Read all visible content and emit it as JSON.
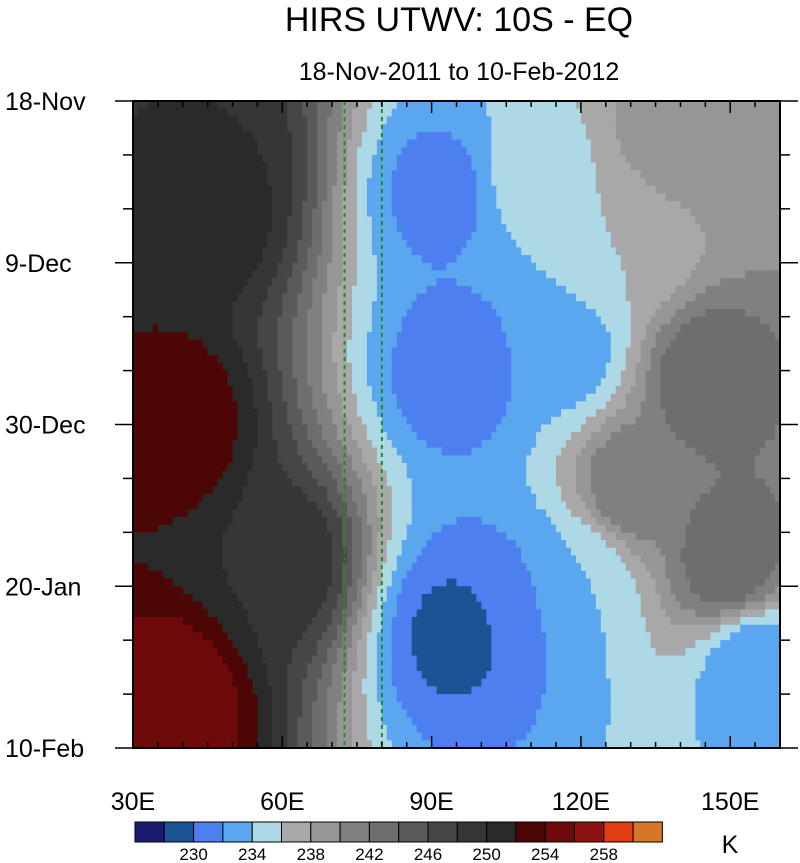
{
  "chart_data": {
    "type": "heatmap",
    "title": "HIRS UTWV: 10S - EQ",
    "subtitle": "18-Nov-2011 to 10-Feb-2012",
    "x_axis": {
      "range": [
        30,
        160
      ],
      "ticks": [
        {
          "value": 30,
          "label": "30E"
        },
        {
          "value": 60,
          "label": "60E"
        },
        {
          "value": 90,
          "label": "90E"
        },
        {
          "value": 120,
          "label": "120E"
        },
        {
          "value": 150,
          "label": "150E"
        }
      ]
    },
    "y_axis": {
      "range": [
        "18-Nov-2011",
        "10-Feb-2012"
      ],
      "ticks": [
        {
          "day": 0,
          "label": "18-Nov"
        },
        {
          "day": 21,
          "label": "9-Dec"
        },
        {
          "day": 42,
          "label": "30-Dec"
        },
        {
          "day": 63,
          "label": "20-Jan"
        },
        {
          "day": 84,
          "label": "10-Feb"
        }
      ]
    },
    "reference_lines_longitude": [
      72.5,
      80
    ],
    "reference_line_color": "#1f8a1f",
    "colorbar": {
      "unit": "K",
      "levels": [
        228,
        230,
        232,
        234,
        236,
        238,
        240,
        242,
        244,
        246,
        248,
        250,
        252,
        254,
        256,
        258,
        260
      ],
      "labels": [
        "230",
        "234",
        "238",
        "242",
        "246",
        "250",
        "254",
        "258"
      ],
      "colors": [
        "#1a1a6e",
        "#1c5394",
        "#4e7ff0",
        "#5aa6ef",
        "#add8e6",
        "#a8a8a8",
        "#969696",
        "#808080",
        "#6e6e6e",
        "#5a5a5a",
        "#464646",
        "#363636",
        "#2a2a2a",
        "#4d0606",
        "#6e0a0a",
        "#8f1212",
        "#e33b12",
        "#d67627"
      ]
    },
    "field_features": [
      {
        "lon": 45,
        "day": 6,
        "value": 250
      },
      {
        "lon": 45,
        "day": 14,
        "value": 252
      },
      {
        "lon": 38,
        "day": 42,
        "value": 254
      },
      {
        "lon": 38,
        "day": 78,
        "value": 256
      },
      {
        "lon": 60,
        "day": 60,
        "value": 250
      },
      {
        "lon": 92,
        "day": 12,
        "value": 231
      },
      {
        "lon": 95,
        "day": 35,
        "value": 230
      },
      {
        "lon": 100,
        "day": 32,
        "value": 232
      },
      {
        "lon": 118,
        "day": 33,
        "value": 233
      },
      {
        "lon": 95,
        "day": 69,
        "value": 229
      },
      {
        "lon": 102,
        "day": 66,
        "value": 230
      },
      {
        "lon": 110,
        "day": 64,
        "value": 232
      },
      {
        "lon": 120,
        "day": 62,
        "value": 234
      },
      {
        "lon": 155,
        "day": 73,
        "value": 232
      },
      {
        "lon": 110,
        "day": 10,
        "value": 235
      },
      {
        "lon": 130,
        "day": 18,
        "value": 236
      },
      {
        "lon": 140,
        "day": 5,
        "value": 240
      },
      {
        "lon": 145,
        "day": 36,
        "value": 244
      },
      {
        "lon": 130,
        "day": 50,
        "value": 242
      },
      {
        "lon": 150,
        "day": 60,
        "value": 244
      }
    ]
  }
}
